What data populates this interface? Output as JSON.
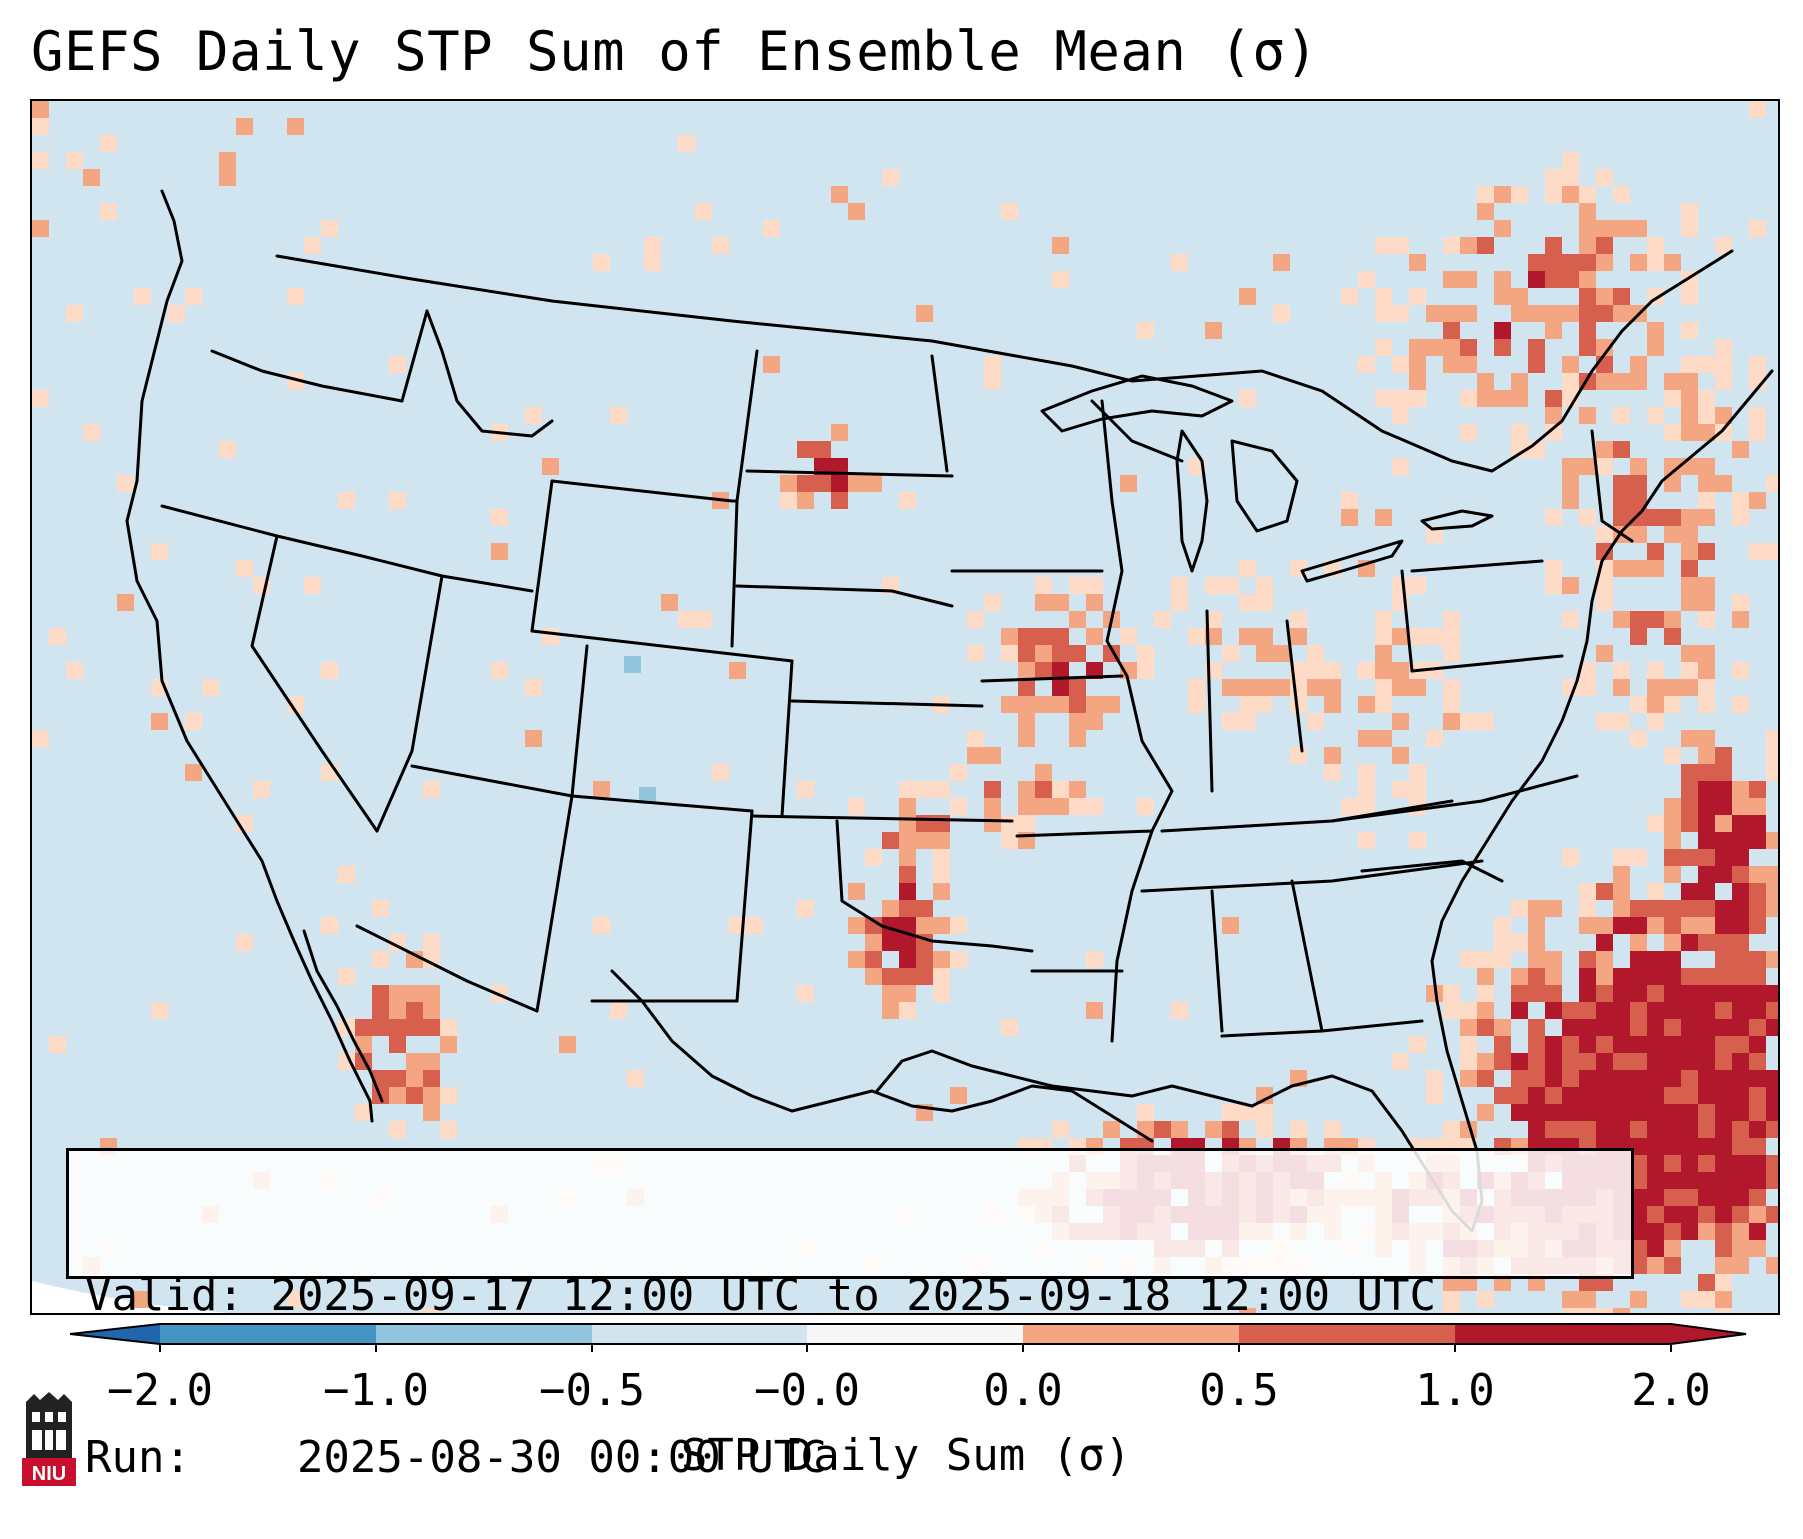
{
  "title": "GEFS Daily STP Sum of Ensemble Mean (σ)",
  "info": {
    "valid_label": "Valid:",
    "valid_value": "2025-09-17 12:00 UTC to 2025-09-18 12:00 UTC",
    "run_label": "Run:",
    "run_value": "2025-08-30 00:00 UTC"
  },
  "colorbar": {
    "label": "STP Daily Sum (σ)",
    "tick_labels": [
      "−2.0",
      "−1.0",
      "−0.5",
      "−0.0",
      "0.0",
      "0.5",
      "1.0",
      "2.0"
    ],
    "bins": [
      {
        "range": "<-2.0",
        "color": "#2166ac"
      },
      {
        "range": "-2.0 to -1.0",
        "color": "#4393c3"
      },
      {
        "range": "-1.0 to -0.5",
        "color": "#92c5de"
      },
      {
        "range": "-0.5 to 0.0",
        "color": "#d1e5f0"
      },
      {
        "range": "0.0",
        "color": "#f7f7f7"
      },
      {
        "range": "0.0 to 0.5",
        "color": "#fddbc7"
      },
      {
        "range": "0.5 to 1.0",
        "color": "#f4a582"
      },
      {
        "range": "1.0 to 2.0",
        "color": "#d6604d"
      },
      {
        "range": ">2.0",
        "color": "#b2182b"
      }
    ]
  },
  "map": {
    "projection": "Lambert Conformal (CONUS)",
    "background_color": "#d1e5f0",
    "border_color": "#000000"
  },
  "logo": {
    "text": "NIU"
  }
}
